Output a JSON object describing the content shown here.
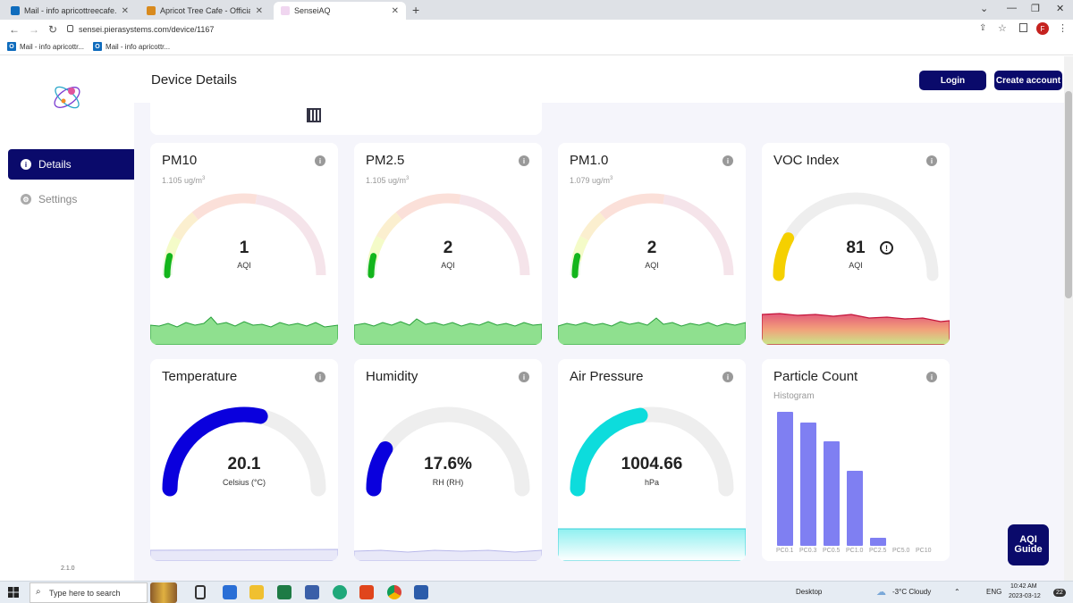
{
  "browser": {
    "tabs": [
      {
        "label": "Mail - info apricottreecafe.com -",
        "color": "#0f6cbd"
      },
      {
        "label": "Apricot Tree Cafe - Official Webs",
        "color": "#d88a1e"
      },
      {
        "label": "SenseiAQ",
        "color": "#d6a0d6"
      }
    ],
    "url": "sensei.pierasystems.com/device/1167",
    "bookmarks": [
      "Mail - info apricottr...",
      "Mail - info apricottr..."
    ],
    "profile_initial": "F"
  },
  "sidebar": {
    "items": [
      {
        "label": "Details",
        "icon": "info-icon"
      },
      {
        "label": "Settings",
        "icon": "gear-icon"
      }
    ],
    "version": "2.1.0"
  },
  "header": {
    "title": "Device Details",
    "login": "Login",
    "create_account": "Create account"
  },
  "cards": {
    "pm10": {
      "title": "PM10",
      "sub": "1.105 ug/m",
      "value": "1",
      "unit": "AQI",
      "level": 0.08
    },
    "pm25": {
      "title": "PM2.5",
      "sub": "1.105 ug/m",
      "value": "2",
      "unit": "AQI",
      "level": 0.08
    },
    "pm1": {
      "title": "PM1.0",
      "sub": "1.079 ug/m",
      "value": "2",
      "unit": "AQI",
      "level": 0.08
    },
    "voc": {
      "title": "VOC Index",
      "value": "81",
      "unit": "AQI",
      "level": 0.16
    },
    "temp": {
      "title": "Temperature",
      "value": "20.1",
      "unit": "Celsius (°C)",
      "level": 0.57
    },
    "hum": {
      "title": "Humidity",
      "value": "17.6%",
      "unit": "RH (RH)",
      "level": 0.18
    },
    "press": {
      "title": "Air Pressure",
      "value": "1004.66",
      "unit": "hPa",
      "level": 0.45
    },
    "particle": {
      "title": "Particle Count",
      "sub": "Histogram"
    }
  },
  "sup": "3",
  "chart_data": {
    "type": "bar",
    "title": "Particle Count",
    "subtitle": "Histogram",
    "categories": [
      "PC0.1",
      "PC0.3",
      "PC0.5",
      "PC1.0",
      "PC2.5",
      "PC5.0",
      "PC10"
    ],
    "values": [
      100,
      92,
      78,
      56,
      6,
      0,
      0
    ]
  },
  "aqi_guide": {
    "line1": "AQI",
    "line2": "Guide"
  },
  "taskbar": {
    "search": "Type here to search",
    "desktop": "Desktop",
    "weather": "-3°C  Cloudy",
    "lang": "ENG",
    "time": "10:42 AM",
    "date": "2023-03-12",
    "notif": "22"
  }
}
